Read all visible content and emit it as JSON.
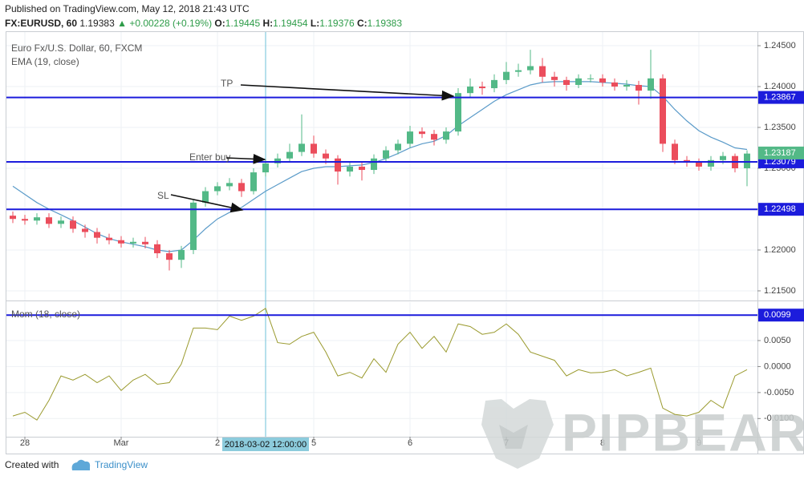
{
  "header": {
    "published": "Published on TradingView.com, May 12, 2018 21:43 UTC",
    "symbol": "FX:EURUSD, 60",
    "last": "1.19383",
    "change": "▲ +0.00228 (+0.19%)",
    "ohlc": [
      {
        "label": "O:",
        "value": "1.19445"
      },
      {
        "label": "H:",
        "value": "1.19454"
      },
      {
        "label": "L:",
        "value": "1.19376"
      },
      {
        "label": "C:",
        "value": "1.19383"
      }
    ]
  },
  "watermark": "PIPBEAR",
  "footer": {
    "created": "Created with",
    "brand": "TradingView"
  },
  "chart_data": [
    {
      "type": "candlestick",
      "title": "Euro Fx/U.S. Dollar, 60, FXCM",
      "x": [
        -27,
        -24,
        -21,
        -18,
        -15,
        -12,
        -9,
        -6,
        -3,
        0,
        3,
        6,
        9,
        12,
        15,
        18,
        21,
        24,
        27,
        30,
        33,
        36,
        39,
        42,
        45,
        48,
        51,
        54,
        57,
        60,
        63,
        66,
        69,
        72,
        75,
        78,
        81,
        84,
        87,
        90,
        93,
        96,
        99,
        102,
        105,
        108,
        111,
        114,
        117,
        120,
        123,
        126,
        129,
        132,
        135,
        138,
        141,
        144,
        147,
        150,
        153,
        156
      ],
      "open": [
        1.2242,
        1.2238,
        1.2236,
        1.224,
        1.2232,
        1.2236,
        1.2226,
        1.2222,
        1.2215,
        1.2212,
        1.2208,
        1.221,
        1.2207,
        1.2196,
        1.2188,
        1.22,
        1.2258,
        1.2272,
        1.2278,
        1.2282,
        1.2272,
        1.2295,
        1.2306,
        1.2312,
        1.232,
        1.233,
        1.2318,
        1.2312,
        1.2296,
        1.2302,
        1.2298,
        1.2312,
        1.2322,
        1.233,
        1.2345,
        1.2342,
        1.2335,
        1.2345,
        1.2392,
        1.24,
        1.2398,
        1.2408,
        1.2418,
        1.242,
        1.2425,
        1.2412,
        1.2408,
        1.2402,
        1.241,
        1.241,
        1.2405,
        1.24,
        1.2402,
        1.2395,
        1.241,
        1.233,
        1.231,
        1.2308,
        1.2302,
        1.231,
        1.2315,
        1.23
      ],
      "high": [
        1.2247,
        1.2243,
        1.2245,
        1.2245,
        1.2241,
        1.2241,
        1.2231,
        1.2227,
        1.222,
        1.2217,
        1.2215,
        1.2216,
        1.2212,
        1.22,
        1.2205,
        1.2262,
        1.2277,
        1.2283,
        1.2288,
        1.2287,
        1.23,
        1.2311,
        1.2318,
        1.233,
        1.2366,
        1.234,
        1.2323,
        1.2316,
        1.2308,
        1.2307,
        1.2317,
        1.2327,
        1.2335,
        1.2352,
        1.235,
        1.2347,
        1.235,
        1.2398,
        1.241,
        1.2406,
        1.2415,
        1.243,
        1.2428,
        1.2445,
        1.2435,
        1.2418,
        1.2412,
        1.2415,
        1.2415,
        1.2415,
        1.241,
        1.2408,
        1.2407,
        1.2445,
        1.2415,
        1.2335,
        1.2315,
        1.2312,
        1.2315,
        1.232,
        1.2318,
        1.2322
      ],
      "low": [
        1.2233,
        1.2231,
        1.2231,
        1.2227,
        1.2227,
        1.2221,
        1.2215,
        1.2208,
        1.2207,
        1.2203,
        1.2203,
        1.2202,
        1.219,
        1.2175,
        1.2178,
        1.2195,
        1.2253,
        1.2267,
        1.2273,
        1.2265,
        1.2268,
        1.229,
        1.2301,
        1.2307,
        1.2315,
        1.2313,
        1.2305,
        1.228,
        1.229,
        1.2285,
        1.2293,
        1.2307,
        1.2317,
        1.2325,
        1.2337,
        1.2328,
        1.233,
        1.234,
        1.2387,
        1.239,
        1.2393,
        1.2403,
        1.2412,
        1.2415,
        1.2405,
        1.24,
        1.2395,
        1.2398,
        1.2405,
        1.24,
        1.2395,
        1.2395,
        1.2378,
        1.2385,
        1.232,
        1.2305,
        1.2302,
        1.2297,
        1.2297,
        1.2305,
        1.2295,
        1.2278
      ],
      "close": [
        1.2238,
        1.2236,
        1.224,
        1.2232,
        1.2236,
        1.2226,
        1.2222,
        1.2215,
        1.2212,
        1.2208,
        1.221,
        1.2207,
        1.2196,
        1.2188,
        1.22,
        1.2258,
        1.2272,
        1.2278,
        1.2282,
        1.2272,
        1.2295,
        1.2306,
        1.2312,
        1.232,
        1.233,
        1.2318,
        1.2312,
        1.2296,
        1.2302,
        1.2298,
        1.2312,
        1.2322,
        1.233,
        1.2345,
        1.2342,
        1.2335,
        1.2345,
        1.2392,
        1.24,
        1.2398,
        1.2408,
        1.2418,
        1.242,
        1.2425,
        1.2412,
        1.2408,
        1.2402,
        1.241,
        1.241,
        1.2405,
        1.24,
        1.2402,
        1.2395,
        1.241,
        1.233,
        1.231,
        1.2308,
        1.2302,
        1.231,
        1.2315,
        1.23,
        1.2318
      ],
      "up_color": "#53b987",
      "down_color": "#eb4d5c",
      "overlays": [
        {
          "name": "EMA (19, close)",
          "color": "#5b9bc9",
          "values": [
            1.2278,
            1.2268,
            1.2258,
            1.225,
            1.2243,
            1.2236,
            1.2228,
            1.222,
            1.2214,
            1.221,
            1.2207,
            1.2204,
            1.22,
            1.2198,
            1.22,
            1.2212,
            1.2226,
            1.2238,
            1.2246,
            1.2252,
            1.2262,
            1.2272,
            1.228,
            1.2288,
            1.2296,
            1.23,
            1.2302,
            1.2302,
            1.2303,
            1.2304,
            1.2307,
            1.2312,
            1.2318,
            1.2325,
            1.233,
            1.2333,
            1.234,
            1.2352,
            1.2362,
            1.2372,
            1.2382,
            1.239,
            1.2396,
            1.2402,
            1.2405,
            1.2406,
            1.2406,
            1.2406,
            1.2406,
            1.2405,
            1.2404,
            1.2403,
            1.2401,
            1.24,
            1.2388,
            1.2372,
            1.2358,
            1.2346,
            1.2338,
            1.2332,
            1.2325,
            1.2323
          ]
        }
      ],
      "levels": [
        1.23867,
        1.23079,
        1.22498
      ],
      "level_color": "#1c1cdc",
      "last_price": 1.23187,
      "annotations": [
        "TP",
        "Enter buy",
        "SL"
      ],
      "crosshair": {
        "x": 36,
        "label": "2018-03-02 12:00:00"
      },
      "xlim": [
        -28.6,
        158.6
      ],
      "xticks": [
        {
          "value": -24,
          "label": "28"
        },
        {
          "value": 0,
          "label": "Mar"
        },
        {
          "value": 24,
          "label": "2"
        },
        {
          "value": 48,
          "label": "5"
        },
        {
          "value": 72,
          "label": "6"
        },
        {
          "value": 96,
          "label": "7"
        },
        {
          "value": 120,
          "label": "8"
        },
        {
          "value": 144,
          "label": "9"
        }
      ],
      "ylim": [
        1.21382,
        1.24667
      ],
      "yticks": [
        {
          "value": 1.215,
          "label": "1.21500"
        },
        {
          "value": 1.22,
          "label": "1.22000"
        },
        {
          "value": 1.225,
          "label": "1.22500"
        },
        {
          "value": 1.23,
          "label": "1.23000"
        },
        {
          "value": 1.235,
          "label": "1.23500"
        },
        {
          "value": 1.24,
          "label": "1.24000"
        },
        {
          "value": 1.245,
          "label": "1.24500"
        }
      ],
      "grid": true
    },
    {
      "type": "line",
      "title": "Mom (18, close)",
      "color": "#9a9a2e",
      "x": [
        -27,
        -24,
        -21,
        -18,
        -15,
        -12,
        -9,
        -6,
        -3,
        0,
        3,
        6,
        9,
        12,
        15,
        18,
        21,
        24,
        27,
        30,
        33,
        36,
        39,
        42,
        45,
        48,
        51,
        54,
        57,
        60,
        63,
        66,
        69,
        72,
        75,
        78,
        81,
        84,
        87,
        90,
        93,
        96,
        99,
        102,
        105,
        108,
        111,
        114,
        117,
        120,
        123,
        126,
        129,
        132,
        135,
        138,
        141,
        144,
        147,
        150,
        153,
        156
      ],
      "values": [
        -0.0095,
        -0.0088,
        -0.0103,
        -0.0065,
        -0.0018,
        -0.0026,
        -0.0015,
        -0.0031,
        -0.0018,
        -0.0046,
        -0.0026,
        -0.0015,
        -0.0034,
        -0.0031,
        0.0005,
        0.0074,
        0.0074,
        0.0071,
        0.0097,
        0.0089,
        0.0097,
        0.0112,
        0.0046,
        0.0043,
        0.0058,
        0.0066,
        0.0028,
        -0.0018,
        -0.0011,
        -0.0022,
        0.0015,
        -0.0011,
        0.0043,
        0.0066,
        0.0035,
        0.0058,
        0.0028,
        0.0082,
        0.0077,
        0.0062,
        0.0066,
        0.0082,
        0.0062,
        0.0028,
        0.002,
        0.0012,
        -0.0018,
        -0.0006,
        -0.0012,
        -0.0011,
        -0.0006,
        -0.0018,
        -0.0011,
        -0.0003,
        -0.008,
        -0.0092,
        -0.0095,
        -0.0088,
        -0.0065,
        -0.008,
        -0.0018,
        -0.0006
      ],
      "levels": [
        0.0099
      ],
      "level_color": "#1c1cdc",
      "xlim": [
        -28.6,
        158.6
      ],
      "ylim": [
        -0.0135,
        0.0124
      ],
      "yticks": [
        {
          "value": -0.01,
          "label": "-0.0100"
        },
        {
          "value": -0.005,
          "label": "-0.0050"
        },
        {
          "value": 0,
          "label": "0.0000"
        },
        {
          "value": 0.005,
          "label": "0.0050"
        }
      ],
      "grid": true
    }
  ]
}
